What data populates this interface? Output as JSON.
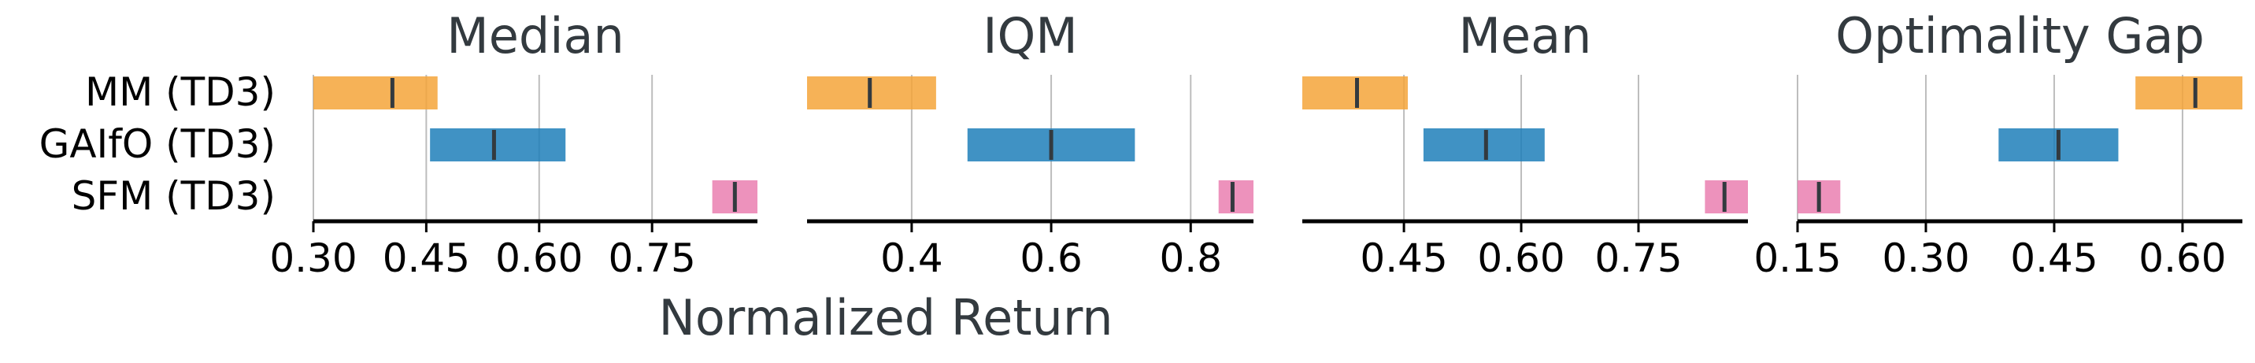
{
  "figure": {
    "xlabel": "Normalized Return",
    "methods": [
      "MM (TD3)",
      "GAIfO (TD3)",
      "SFM (TD3)"
    ]
  },
  "colors": {
    "MM (TD3)": "#f5a43a",
    "GAIfO (TD3)": "#1f7fba",
    "SFM (TD3)": "#ea7fb0",
    "grid": "#bdbdbd",
    "median_mark": "#333a3f",
    "text": "#333a3f"
  },
  "chart_data": [
    {
      "type": "bar",
      "title": "Median",
      "xlim": [
        0.3,
        0.89
      ],
      "ticks": [
        0.3,
        0.45,
        0.6,
        0.75
      ],
      "tick_labels": [
        "0.30",
        "0.45",
        "0.60",
        "0.75"
      ],
      "grid": true,
      "series": [
        {
          "name": "MM (TD3)",
          "low": 0.3,
          "high": 0.465,
          "point": 0.405
        },
        {
          "name": "GAIfO (TD3)",
          "low": 0.455,
          "high": 0.635,
          "point": 0.54
        },
        {
          "name": "SFM (TD3)",
          "low": 0.83,
          "high": 0.89,
          "point": 0.86
        }
      ]
    },
    {
      "type": "bar",
      "title": "IQM",
      "xlim": [
        0.25,
        0.89
      ],
      "ticks": [
        0.4,
        0.6,
        0.8
      ],
      "tick_labels": [
        "0.4",
        "0.6",
        "0.8"
      ],
      "grid": true,
      "series": [
        {
          "name": "MM (TD3)",
          "low": 0.25,
          "high": 0.435,
          "point": 0.34
        },
        {
          "name": "GAIfO (TD3)",
          "low": 0.48,
          "high": 0.72,
          "point": 0.6
        },
        {
          "name": "SFM (TD3)",
          "low": 0.84,
          "high": 0.89,
          "point": 0.86
        }
      ]
    },
    {
      "type": "bar",
      "title": "Mean",
      "xlim": [
        0.32,
        0.89
      ],
      "ticks": [
        0.45,
        0.6,
        0.75
      ],
      "tick_labels": [
        "0.45",
        "0.60",
        "0.75"
      ],
      "grid": true,
      "series": [
        {
          "name": "MM (TD3)",
          "low": 0.32,
          "high": 0.455,
          "point": 0.39
        },
        {
          "name": "GAIfO (TD3)",
          "low": 0.475,
          "high": 0.63,
          "point": 0.555
        },
        {
          "name": "SFM (TD3)",
          "low": 0.835,
          "high": 0.89,
          "point": 0.86
        }
      ]
    },
    {
      "type": "bar",
      "title": "Optimality Gap",
      "xlim": [
        0.15,
        0.67
      ],
      "ticks": [
        0.15,
        0.3,
        0.45,
        0.6
      ],
      "tick_labels": [
        "0.15",
        "0.30",
        "0.45",
        "0.60"
      ],
      "grid": true,
      "series": [
        {
          "name": "MM (TD3)",
          "low": 0.545,
          "high": 0.67,
          "point": 0.615
        },
        {
          "name": "GAIfO (TD3)",
          "low": 0.385,
          "high": 0.525,
          "point": 0.455
        },
        {
          "name": "SFM (TD3)",
          "low": 0.15,
          "high": 0.2,
          "point": 0.175
        }
      ]
    }
  ]
}
